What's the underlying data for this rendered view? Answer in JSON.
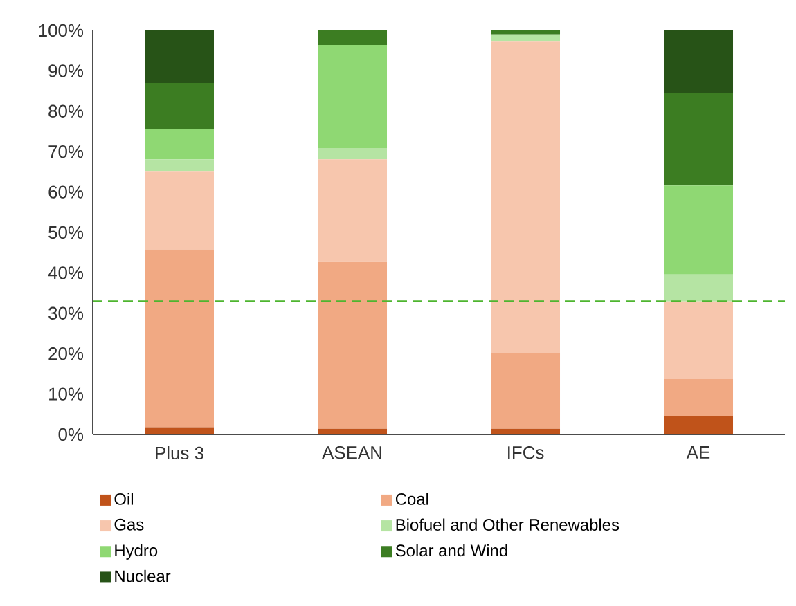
{
  "chart_data": {
    "type": "bar",
    "stacked": true,
    "categories": [
      "Plus 3",
      "ASEAN",
      "IFCs",
      "AE"
    ],
    "series": [
      {
        "name": "Oil",
        "color": "#c0531a",
        "values": [
          1.8,
          1.4,
          1.4,
          4.6
        ]
      },
      {
        "name": "Coal",
        "color": "#f1a983",
        "values": [
          44.0,
          41.3,
          18.8,
          9.1
        ]
      },
      {
        "name": "Gas",
        "color": "#f7c6ad",
        "values": [
          19.4,
          25.4,
          77.2,
          19.2
        ]
      },
      {
        "name": "Biofuel and Other Renewables",
        "color": "#b5e4a3",
        "values": [
          2.9,
          2.8,
          1.6,
          6.7
        ]
      },
      {
        "name": "Hydro",
        "color": "#8fd873",
        "values": [
          7.6,
          25.5,
          0,
          22.0
        ]
      },
      {
        "name": "Solar and Wind",
        "color": "#3c7d22",
        "values": [
          11.3,
          3.6,
          1.0,
          22.9
        ]
      },
      {
        "name": "Nuclear",
        "color": "#275317",
        "values": [
          13.0,
          0,
          0,
          15.5
        ]
      }
    ],
    "ylim": [
      0,
      100
    ],
    "yticks": [
      {
        "value": 0,
        "label": "0%"
      },
      {
        "value": 10,
        "label": "10%"
      },
      {
        "value": 20,
        "label": "20%"
      },
      {
        "value": 30,
        "label": "30%"
      },
      {
        "value": 40,
        "label": "40%"
      },
      {
        "value": 50,
        "label": "50%"
      },
      {
        "value": 60,
        "label": "60%"
      },
      {
        "value": 70,
        "label": "70%"
      },
      {
        "value": 80,
        "label": "80%"
      },
      {
        "value": 90,
        "label": "90%"
      },
      {
        "value": 100,
        "label": "100%"
      }
    ],
    "ref_lines": [
      {
        "axis": "y",
        "value": 33,
        "color": "#4eb52f",
        "line_style": "dashed"
      }
    ],
    "grid": false,
    "legend": "bottom"
  }
}
